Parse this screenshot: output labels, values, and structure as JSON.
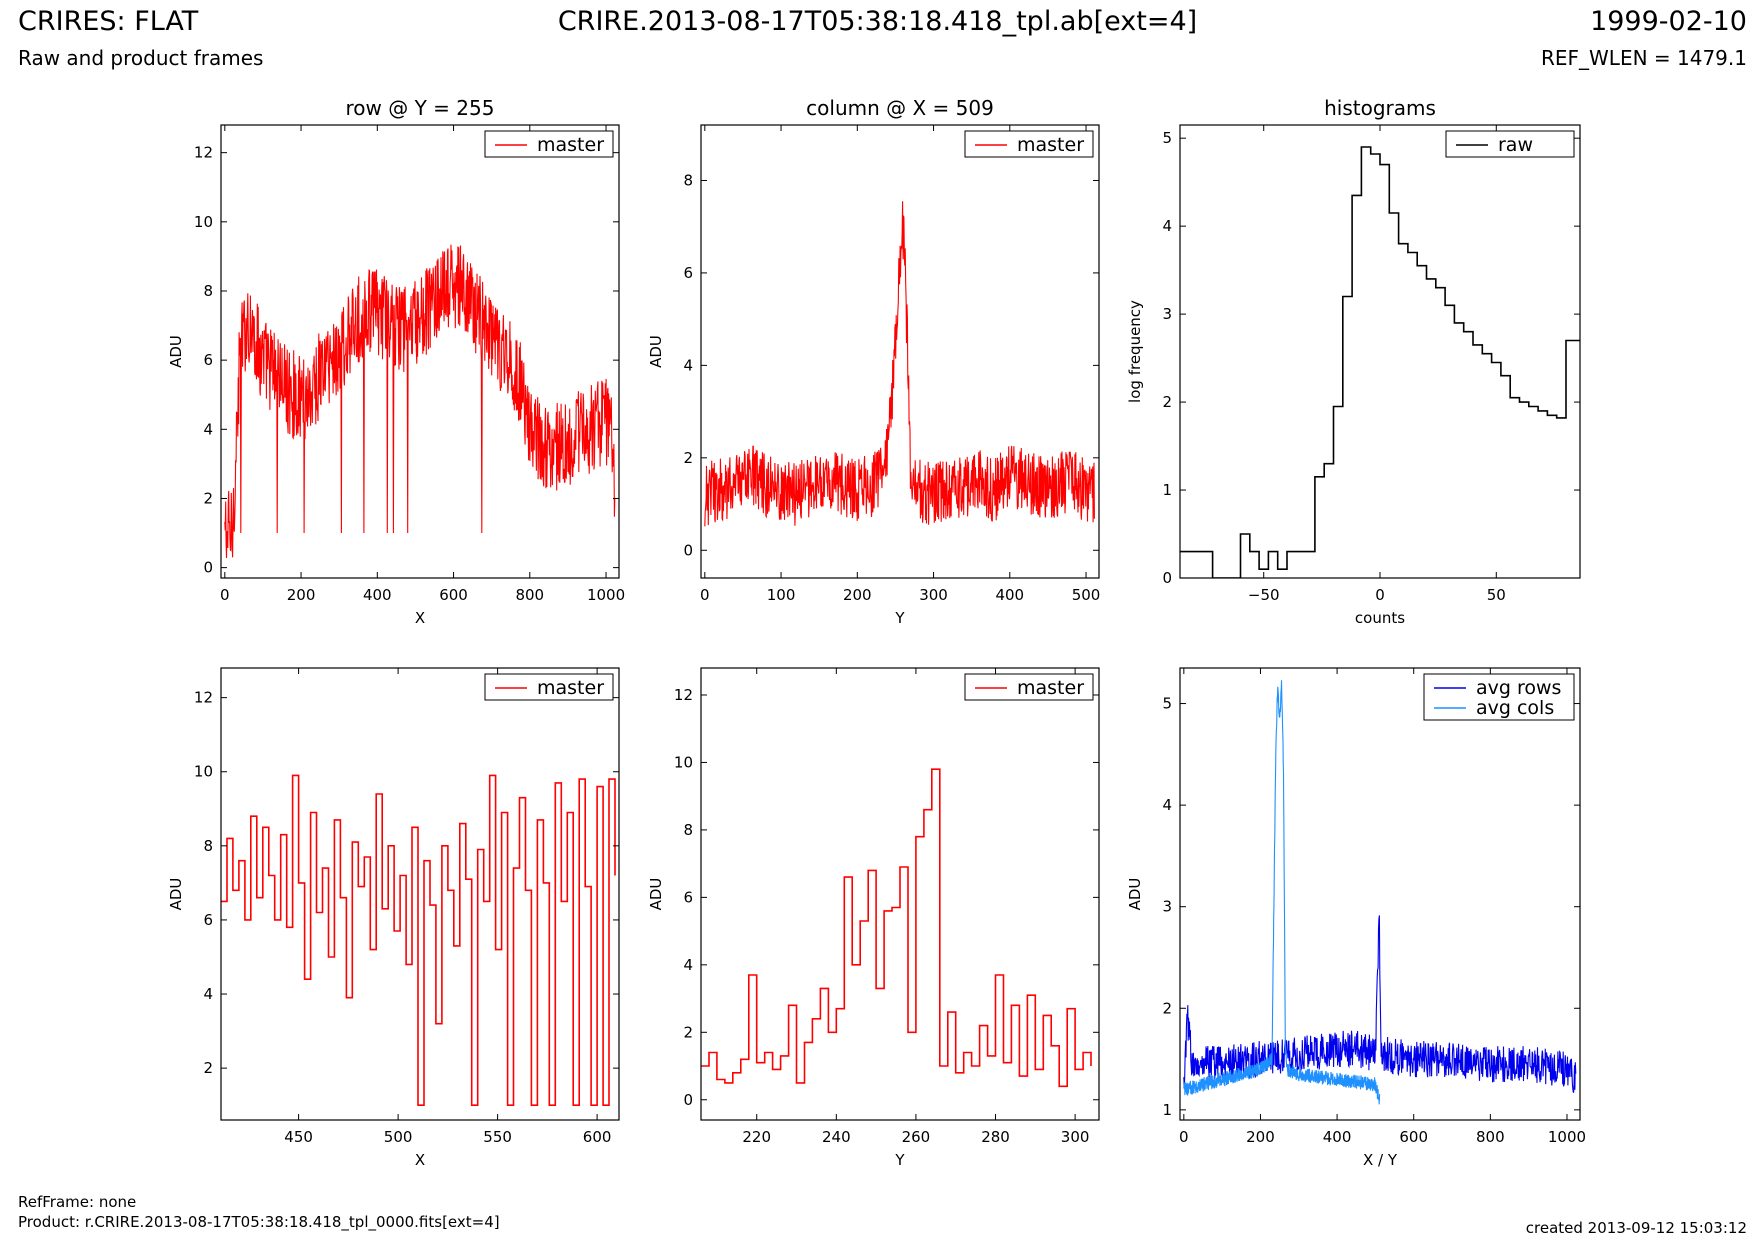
{
  "header": {
    "title_left": "CRIRES: FLAT",
    "subtitle_left": "Raw and product frames",
    "title_center": "CRIRE.2013-08-17T05:38:18.418_tpl.ab[ext=4]",
    "title_right": "1999-02-10",
    "subtitle_right": "REF_WLEN = 1479.1"
  },
  "footer": {
    "refframe": "RefFrame: none",
    "product": "Product: r.CRIRE.2013-08-17T05:38:18.418_tpl_0000.fits[ext=4]",
    "created": "created 2013-09-12 15:03:12"
  },
  "chart_data": [
    {
      "id": "row-full",
      "type": "line",
      "title": "row @ Y = 255",
      "xlabel": "X",
      "ylabel": "ADU",
      "xlim": [
        -10,
        1034
      ],
      "ylim": [
        -0.3,
        12.8
      ],
      "xticks": [
        0,
        200,
        400,
        600,
        800,
        1000
      ],
      "yticks": [
        0,
        2,
        4,
        6,
        8,
        10,
        12
      ],
      "legend_position": "top-right",
      "series": [
        {
          "name": "master",
          "color": "#ff0000",
          "step": false,
          "noise": 1.3,
          "x": [
            0,
            20,
            40,
            60,
            80,
            100,
            120,
            140,
            160,
            180,
            200,
            220,
            240,
            260,
            280,
            300,
            320,
            340,
            360,
            380,
            400,
            420,
            440,
            460,
            480,
            500,
            520,
            540,
            560,
            580,
            600,
            620,
            640,
            660,
            680,
            700,
            720,
            740,
            760,
            780,
            800,
            820,
            840,
            860,
            880,
            900,
            920,
            940,
            960,
            980,
            1000,
            1020,
            1023
          ],
          "y": [
            1.0,
            1.0,
            6.2,
            7.2,
            6.6,
            6.0,
            5.8,
            5.6,
            5.2,
            5.0,
            4.9,
            5.0,
            5.4,
            5.8,
            6.0,
            6.2,
            6.5,
            6.9,
            7.3,
            7.5,
            7.4,
            7.2,
            7.0,
            6.9,
            7.0,
            7.0,
            7.2,
            7.6,
            7.8,
            8.0,
            8.2,
            8.0,
            7.7,
            7.4,
            7.0,
            6.7,
            6.3,
            6.0,
            5.7,
            5.2,
            4.0,
            3.7,
            3.6,
            3.5,
            3.5,
            3.6,
            3.8,
            3.9,
            4.0,
            4.1,
            4.2,
            4.0,
            2.0
          ]
        }
      ]
    },
    {
      "id": "col-full",
      "type": "line",
      "title": "column @ X = 509",
      "xlabel": "Y",
      "ylabel": "ADU",
      "xlim": [
        -5,
        517
      ],
      "ylim": [
        -0.6,
        9.2
      ],
      "xticks": [
        0,
        100,
        200,
        300,
        400,
        500
      ],
      "yticks": [
        0,
        2,
        4,
        6,
        8
      ],
      "legend_position": "top-right",
      "series": [
        {
          "name": "master",
          "color": "#ff0000",
          "step": false,
          "noise": 0.7,
          "x": [
            0,
            20,
            40,
            60,
            80,
            100,
            120,
            140,
            160,
            180,
            200,
            220,
            240,
            250,
            255,
            260,
            265,
            270,
            280,
            300,
            320,
            340,
            360,
            380,
            400,
            420,
            440,
            460,
            480,
            500,
            511
          ],
          "y": [
            1.2,
            1.3,
            1.4,
            1.6,
            1.4,
            1.3,
            1.2,
            1.4,
            1.5,
            1.4,
            1.3,
            1.4,
            2.0,
            4.5,
            6.0,
            7.0,
            5.0,
            1.5,
            1.3,
            1.2,
            1.3,
            1.4,
            1.5,
            1.3,
            1.6,
            1.5,
            1.4,
            1.4,
            1.5,
            1.3,
            1.2
          ]
        }
      ]
    },
    {
      "id": "hist",
      "type": "line",
      "title": "histograms",
      "xlabel": "counts",
      "ylabel": "log frequency",
      "xlim": [
        -86,
        86
      ],
      "ylim": [
        0,
        5.15
      ],
      "xticks": [
        -50,
        0,
        50
      ],
      "yticks": [
        0,
        1,
        2,
        3,
        4,
        5
      ],
      "legend_position": "top-right",
      "series": [
        {
          "name": "raw",
          "color": "#000000",
          "step": true,
          "noise": 0,
          "x": [
            -86,
            -72,
            -68,
            -64,
            -60,
            -56,
            -52,
            -48,
            -44,
            -40,
            -36,
            -32,
            -28,
            -24,
            -20,
            -16,
            -12,
            -8,
            -4,
            0,
            4,
            8,
            12,
            16,
            20,
            24,
            28,
            32,
            36,
            40,
            44,
            48,
            52,
            56,
            60,
            64,
            68,
            72,
            76,
            80,
            84,
            86
          ],
          "y": [
            0.3,
            0.0,
            0.0,
            0.0,
            0.5,
            0.3,
            0.1,
            0.3,
            0.1,
            0.3,
            0.3,
            0.3,
            1.15,
            1.3,
            1.95,
            3.2,
            4.35,
            4.9,
            4.82,
            4.7,
            4.15,
            3.8,
            3.7,
            3.55,
            3.4,
            3.3,
            3.1,
            2.9,
            2.8,
            2.65,
            2.55,
            2.45,
            2.3,
            2.05,
            2.0,
            1.95,
            1.9,
            1.85,
            1.82,
            2.7,
            2.7,
            2.7
          ]
        }
      ]
    },
    {
      "id": "row-zoom",
      "type": "line",
      "title": "",
      "xlabel": "X",
      "ylabel": "ADU",
      "xlim": [
        411,
        611
      ],
      "ylim": [
        0.6,
        12.8
      ],
      "xticks": [
        450,
        500,
        550,
        600
      ],
      "yticks": [
        2,
        4,
        6,
        8,
        10,
        12
      ],
      "legend_position": "top-right",
      "series": [
        {
          "name": "master",
          "color": "#ff0000",
          "step": true,
          "noise": 0,
          "x": [
            411,
            414,
            417,
            420,
            423,
            426,
            429,
            432,
            435,
            438,
            441,
            444,
            447,
            450,
            453,
            456,
            459,
            462,
            465,
            468,
            471,
            474,
            477,
            480,
            483,
            486,
            489,
            492,
            495,
            498,
            501,
            504,
            507,
            510,
            513,
            516,
            519,
            522,
            525,
            528,
            531,
            534,
            537,
            540,
            543,
            546,
            549,
            552,
            555,
            558,
            561,
            564,
            567,
            570,
            573,
            576,
            579,
            582,
            585,
            588,
            591,
            594,
            597,
            600,
            603,
            606,
            609
          ],
          "y": [
            6.5,
            8.2,
            6.8,
            7.6,
            6.0,
            8.8,
            6.6,
            8.5,
            7.2,
            6.0,
            8.3,
            5.8,
            9.9,
            7.0,
            4.4,
            8.9,
            6.2,
            7.4,
            5.0,
            8.7,
            6.6,
            3.9,
            8.1,
            6.9,
            7.7,
            5.2,
            9.4,
            6.3,
            8.0,
            5.7,
            7.2,
            4.8,
            8.5,
            1.0,
            7.6,
            6.4,
            3.2,
            8.0,
            6.8,
            5.3,
            8.6,
            7.1,
            1.0,
            7.9,
            6.5,
            9.9,
            5.2,
            8.9,
            1.0,
            7.4,
            9.3,
            6.8,
            1.0,
            8.7,
            7.0,
            1.0,
            9.7,
            6.5,
            8.9,
            1.0,
            9.8,
            6.9,
            1.0,
            9.6,
            1.0,
            9.8,
            7.2
          ]
        }
      ]
    },
    {
      "id": "col-zoom",
      "type": "line",
      "title": "",
      "xlabel": "Y",
      "ylabel": "ADU",
      "xlim": [
        206,
        306
      ],
      "ylim": [
        -0.6,
        12.8
      ],
      "xticks": [
        220,
        240,
        260,
        280,
        300
      ],
      "yticks": [
        0,
        2,
        4,
        6,
        8,
        10,
        12
      ],
      "legend_position": "top-right",
      "series": [
        {
          "name": "master",
          "color": "#ff0000",
          "step": true,
          "noise": 0,
          "x": [
            206,
            208,
            210,
            212,
            214,
            216,
            218,
            220,
            222,
            224,
            226,
            228,
            230,
            232,
            234,
            236,
            238,
            240,
            242,
            244,
            246,
            248,
            250,
            252,
            254,
            256,
            258,
            260,
            262,
            264,
            266,
            268,
            270,
            272,
            274,
            276,
            278,
            280,
            282,
            284,
            286,
            288,
            290,
            292,
            294,
            296,
            298,
            300,
            302,
            304
          ],
          "y": [
            1.0,
            1.4,
            0.6,
            0.5,
            0.8,
            1.2,
            3.7,
            1.1,
            1.4,
            0.9,
            1.3,
            2.8,
            0.5,
            1.7,
            2.4,
            3.3,
            2.0,
            2.7,
            6.6,
            4.0,
            5.3,
            6.8,
            3.3,
            5.6,
            5.7,
            6.9,
            2.0,
            7.8,
            8.6,
            9.8,
            1.0,
            2.6,
            0.8,
            1.4,
            1.0,
            2.2,
            1.3,
            3.7,
            1.1,
            2.8,
            0.7,
            3.1,
            0.9,
            2.5,
            1.6,
            0.4,
            2.7,
            0.9,
            1.4,
            1.0
          ]
        }
      ]
    },
    {
      "id": "avg",
      "type": "line",
      "title": "",
      "xlabel": "X / Y",
      "ylabel": "ADU",
      "xlim": [
        -10,
        1034
      ],
      "ylim": [
        0.9,
        5.35
      ],
      "xticks": [
        0,
        200,
        400,
        600,
        800,
        1000
      ],
      "yticks": [
        1,
        2,
        3,
        4,
        5
      ],
      "legend_position": "top-right",
      "series": [
        {
          "name": "avg rows",
          "color": "#0000ee",
          "step": false,
          "noise": 0.18,
          "x": [
            0,
            10,
            20,
            40,
            100,
            200,
            300,
            400,
            450,
            500,
            510,
            514,
            520,
            600,
            700,
            800,
            900,
            1000,
            1023
          ],
          "y": [
            1.3,
            1.9,
            1.5,
            1.5,
            1.45,
            1.5,
            1.55,
            1.6,
            1.6,
            1.55,
            2.95,
            1.6,
            1.55,
            1.5,
            1.5,
            1.45,
            1.45,
            1.4,
            1.3
          ]
        },
        {
          "name": "avg cols",
          "color": "#1e90ff",
          "step": false,
          "noise": 0.07,
          "x": [
            0,
            50,
            100,
            150,
            200,
            230,
            235,
            240,
            245,
            250,
            255,
            260,
            265,
            270,
            300,
            400,
            500,
            511
          ],
          "y": [
            1.2,
            1.25,
            1.3,
            1.35,
            1.4,
            1.5,
            3.0,
            4.5,
            5.2,
            4.8,
            5.2,
            4.4,
            1.6,
            1.4,
            1.35,
            1.3,
            1.25,
            1.1
          ]
        }
      ]
    }
  ]
}
